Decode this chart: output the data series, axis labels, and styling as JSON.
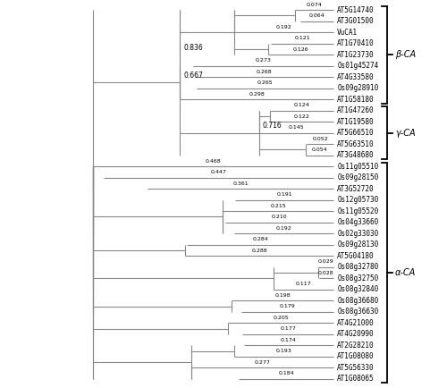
{
  "leaves": [
    "AT5G14740",
    "AT3G01500",
    "VuCA1",
    "AT1G70410",
    "AT1G23730",
    "Os01g45274",
    "AT4G33580",
    "Os09g28910",
    "AT1G58180",
    "AT1G47260",
    "AT1G19580",
    "AT5G66510",
    "AT5G63510",
    "AT3G48680",
    "Os11g05510",
    "Os09g28150",
    "AT3G52720",
    "Os12g05730",
    "Os11g05520",
    "Os04g33660",
    "Os02g33030",
    "Os09g28130",
    "AT5G04180",
    "Os08g32780",
    "Os08g32750",
    "Os08g32840",
    "Os08g36680",
    "Os08g36630",
    "AT4G21000",
    "AT4G20990",
    "AT2G28210",
    "AT1G08080",
    "AT5G56330",
    "AT1G08065"
  ],
  "branch_lengths": [
    0.074,
    0.064,
    0.192,
    0.121,
    0.126,
    0.273,
    0.268,
    0.265,
    0.298,
    0.124,
    0.122,
    0.145,
    0.052,
    0.054,
    0.468,
    0.447,
    0.361,
    0.191,
    0.215,
    0.21,
    0.192,
    0.284,
    0.288,
    0.029,
    0.028,
    0.117,
    0.198,
    0.179,
    0.205,
    0.177,
    0.174,
    0.193,
    0.277,
    0.184
  ],
  "internal_node_labels": [
    "0.836",
    "0.667",
    "0.716"
  ],
  "class_labels": [
    "β-CA",
    "γ-CA",
    "α-CA"
  ],
  "class_leaf_ranges": [
    [
      0,
      8
    ],
    [
      9,
      13
    ],
    [
      14,
      33
    ]
  ],
  "line_color": "#888888",
  "text_color": "#000000",
  "bg_color": "#ffffff",
  "leaf_fontsize": 5.5,
  "bl_fontsize": 4.5,
  "internal_fontsize": 5.5,
  "class_fontsize": 7.0,
  "line_width": 0.8
}
